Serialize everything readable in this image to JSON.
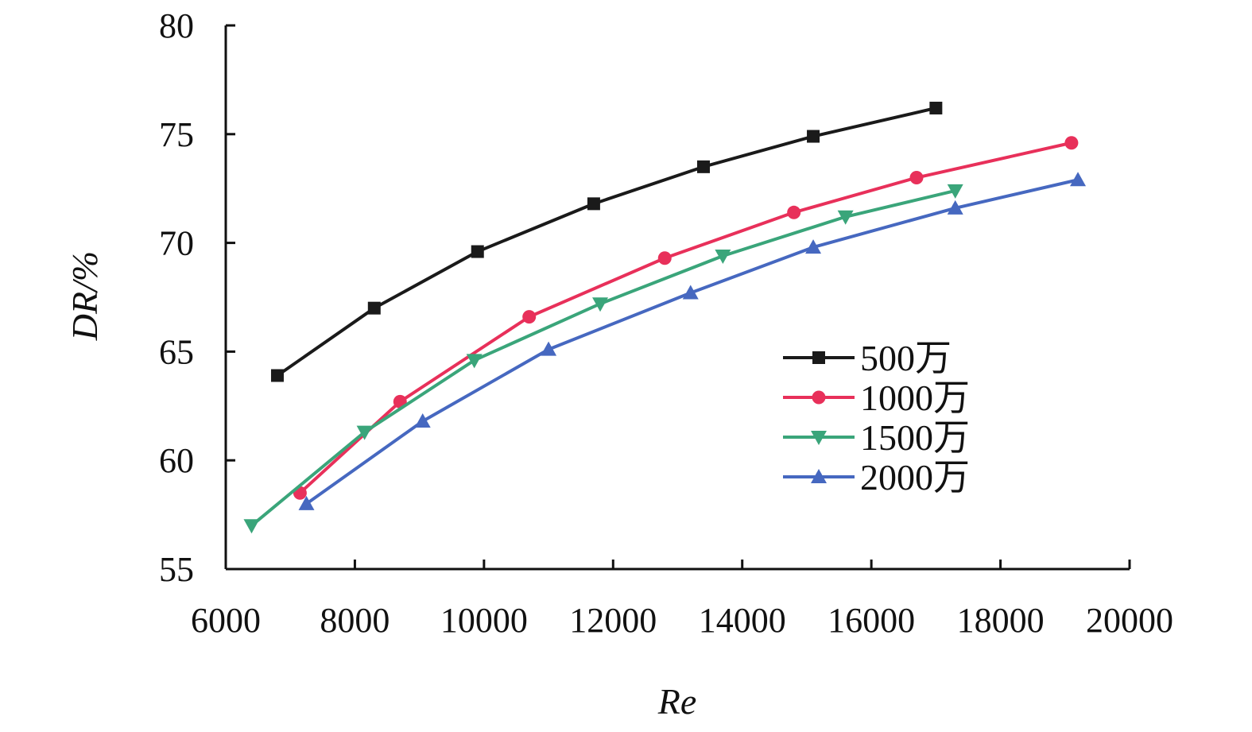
{
  "chart_data": {
    "type": "line",
    "title": "",
    "xlabel": "Re",
    "ylabel": "DR/%",
    "xlim": [
      6000,
      20000
    ],
    "ylim": [
      55,
      80
    ],
    "xticks": [
      6000,
      8000,
      10000,
      12000,
      14000,
      16000,
      18000,
      20000
    ],
    "yticks": [
      55,
      60,
      65,
      70,
      75,
      80
    ],
    "grid": false,
    "legend": "center-right",
    "series": [
      {
        "name": "500万",
        "color": "#1a1a1a",
        "marker": "square",
        "x": [
          6800,
          8300,
          9900,
          11700,
          13400,
          15100,
          17000
        ],
        "y": [
          63.9,
          67.0,
          69.6,
          71.8,
          73.5,
          74.9,
          76.2
        ]
      },
      {
        "name": "1000万",
        "color": "#e8305a",
        "marker": "circle",
        "x": [
          7150,
          8700,
          10700,
          12800,
          14800,
          16700,
          19100
        ],
        "y": [
          58.5,
          62.7,
          66.6,
          69.3,
          71.4,
          73.0,
          74.6
        ]
      },
      {
        "name": "1500万",
        "color": "#3aa57a",
        "marker": "triangle-down",
        "x": [
          6400,
          8150,
          9850,
          11800,
          13700,
          15600,
          17300
        ],
        "y": [
          57.0,
          61.3,
          64.6,
          67.2,
          69.4,
          71.2,
          72.4
        ]
      },
      {
        "name": "2000万",
        "color": "#4668c0",
        "marker": "triangle-up",
        "x": [
          7250,
          9050,
          11000,
          13200,
          15100,
          17300,
          19200
        ],
        "y": [
          58.0,
          61.8,
          65.1,
          67.7,
          69.8,
          71.6,
          72.9
        ]
      }
    ]
  }
}
